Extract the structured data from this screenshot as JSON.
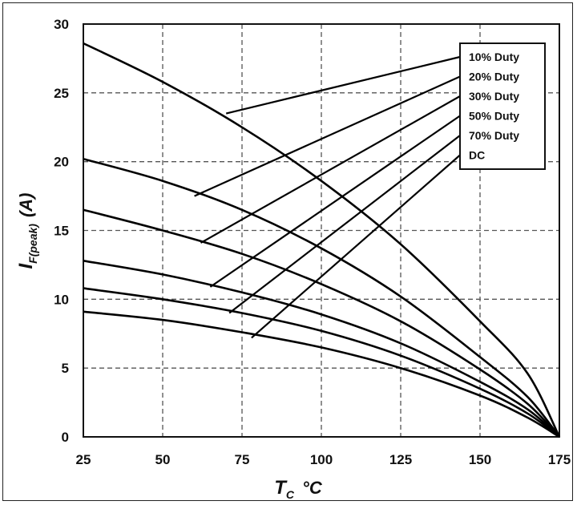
{
  "chart_data": {
    "type": "line",
    "xlabel": {
      "main": "T",
      "sub": "C",
      "unit": "°C"
    },
    "ylabel": {
      "main": "I",
      "sub": "F(peak)",
      "unit": "(A)"
    },
    "xlim": [
      25,
      175
    ],
    "ylim": [
      0,
      30
    ],
    "xticks": [
      25,
      50,
      75,
      100,
      125,
      150,
      175
    ],
    "yticks": [
      0,
      5,
      10,
      15,
      20,
      25,
      30
    ],
    "grid": true,
    "legend_position": "top-right",
    "series": [
      {
        "name": "10% Duty",
        "x": [
          25,
          50,
          75,
          100,
          125,
          150,
          165,
          175
        ],
        "y": [
          28.6,
          25.8,
          22.5,
          18.6,
          14.0,
          8.4,
          4.6,
          0
        ]
      },
      {
        "name": "20% Duty",
        "x": [
          25,
          50,
          75,
          100,
          125,
          150,
          165,
          175
        ],
        "y": [
          20.2,
          18.6,
          16.5,
          13.7,
          10.2,
          5.8,
          2.9,
          0
        ]
      },
      {
        "name": "30% Duty",
        "x": [
          25,
          50,
          75,
          100,
          125,
          150,
          165,
          175
        ],
        "y": [
          16.5,
          15.0,
          13.3,
          11.1,
          8.4,
          4.9,
          2.4,
          0
        ]
      },
      {
        "name": "50% Duty",
        "x": [
          25,
          50,
          75,
          100,
          125,
          150,
          165,
          175
        ],
        "y": [
          12.8,
          11.8,
          10.5,
          8.9,
          6.8,
          4.0,
          2.0,
          0
        ]
      },
      {
        "name": "70% Duty",
        "x": [
          25,
          50,
          75,
          100,
          125,
          150,
          165,
          175
        ],
        "y": [
          10.8,
          10.0,
          9.0,
          7.7,
          5.9,
          3.5,
          1.7,
          0
        ]
      },
      {
        "name": "DC",
        "x": [
          25,
          50,
          75,
          100,
          125,
          150,
          165,
          175
        ],
        "y": [
          9.1,
          8.5,
          7.6,
          6.5,
          5.0,
          3.0,
          1.4,
          0
        ]
      }
    ],
    "leaders": [
      {
        "series": "10% Duty",
        "x": 70,
        "y": 23.5
      },
      {
        "series": "20% Duty",
        "x": 60,
        "y": 17.5
      },
      {
        "series": "30% Duty",
        "x": 62,
        "y": 14.1
      },
      {
        "series": "50% Duty",
        "x": 65,
        "y": 10.9
      },
      {
        "series": "70% Duty",
        "x": 71,
        "y": 9.0
      },
      {
        "series": "DC",
        "x": 78,
        "y": 7.2
      }
    ],
    "colors": {
      "line": "#000000",
      "grid": "#555555",
      "text": "#111111"
    }
  }
}
